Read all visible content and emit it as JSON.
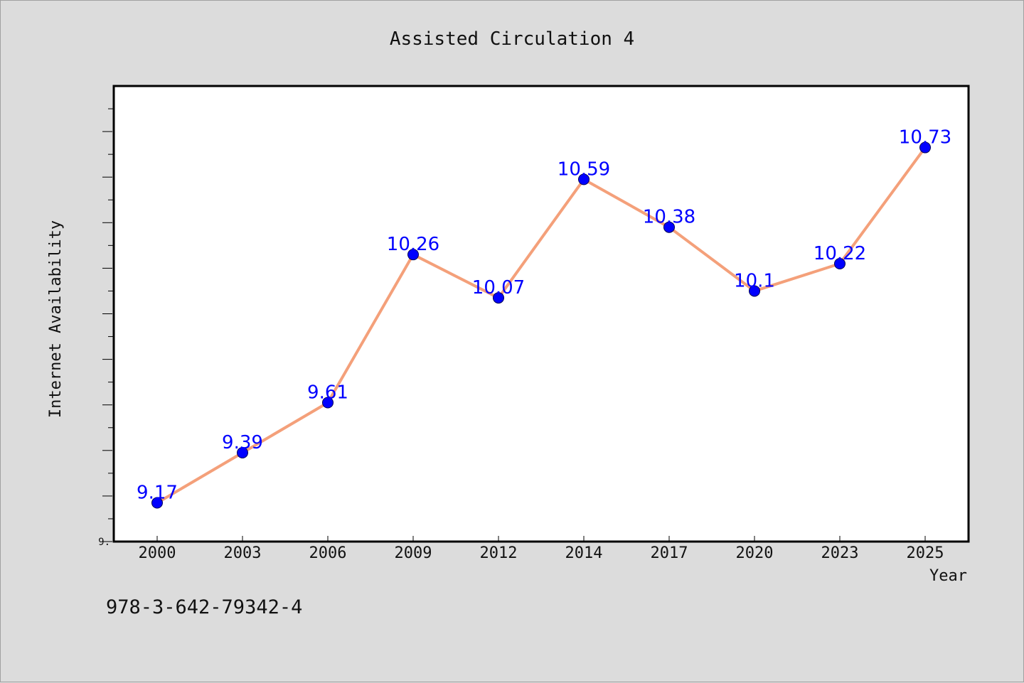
{
  "chart_data": {
    "type": "line",
    "title": "Assisted Circulation 4",
    "xlabel": "Year",
    "ylabel": "Internet Availability",
    "categories": [
      "2000",
      "2003",
      "2006",
      "2009",
      "2012",
      "2014",
      "2017",
      "2020",
      "2023",
      "2025"
    ],
    "series": [
      {
        "values": [
          9.17,
          9.39,
          9.61,
          10.26,
          10.07,
          10.59,
          10.38,
          10.1,
          10.22,
          10.73
        ],
        "line_color": "#f4a07a",
        "marker_color": "#0000ff",
        "label_color": "#0000ff"
      }
    ],
    "yticks": [
      {
        "value": 9.0,
        "label": "9."
      }
    ],
    "ylim": [
      9.0,
      11.0
    ],
    "grid": false,
    "legend": "none",
    "colors": {
      "background": "#dcdcdc",
      "plot_background": "#ffffff",
      "axis": "#000000"
    }
  },
  "footer": {
    "isbn": "978-3-642-79342-4"
  }
}
